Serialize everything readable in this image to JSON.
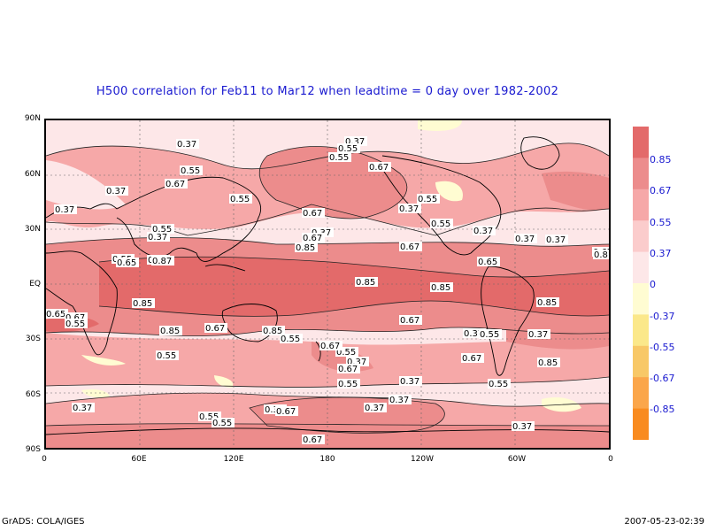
{
  "title": "H500 correlation for  Feb11 to Mar12  when leadtime =  0 day over 1982-2002",
  "y_axis_labels": [
    "90N",
    "60N",
    "30N",
    "EQ",
    "30S",
    "60S",
    "90S"
  ],
  "x_axis_labels": [
    "0",
    "60E",
    "120E",
    "180",
    "120W",
    "60W",
    "0"
  ],
  "colorbar": {
    "labels": [
      "0.85",
      "0.67",
      "0.55",
      "0.37",
      "0",
      "-0.37",
      "-0.55",
      "-0.67",
      "-0.85"
    ],
    "colors": [
      "#e36a6a",
      "#ec8c8c",
      "#f6a8a8",
      "#fbcccc",
      "#fde7e8",
      "#fffcd2",
      "#fbe88a",
      "#f8c867",
      "#fba64a",
      "#f98b1f"
    ]
  },
  "contour_labels": [
    "0.37",
    "0.37",
    "0.55",
    "0.55",
    "0.37",
    "0.55",
    "0.67",
    "0.55",
    "0.67",
    "0.37",
    "0.67",
    "0.55",
    "0.37",
    "0.55",
    "0.37",
    "0.55",
    "0.37",
    "0.67",
    "0.67",
    "0.37",
    "0.85",
    "0.67",
    "0.55",
    "0.37",
    "0.37",
    "0.67",
    "0.65",
    "0.87",
    "0.85",
    "0.65",
    "0.85",
    "0.85",
    "0.85",
    "0.85",
    "0.65",
    "0.67",
    "0.55",
    "0.85",
    "0.67",
    "0.37",
    "0.55",
    "0.37",
    "0.67",
    "0.55",
    "0.55",
    "0.67",
    "0.85",
    "0.55",
    "0.37",
    "0.67",
    "0.55",
    "0.67",
    "0.37",
    "0.37",
    "0.37",
    "0.55",
    "0.37",
    "0.55",
    "0.55",
    "0.37",
    "0.67",
    "0.37",
    "0.67",
    "0.8"
  ],
  "footer": {
    "left": "GrADS: COLA/IGES",
    "right": "2007-05-23-02:39"
  }
}
